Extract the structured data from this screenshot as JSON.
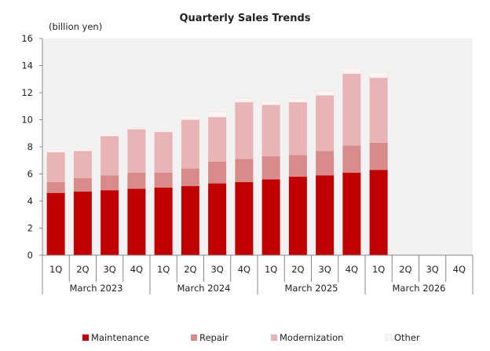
{
  "chart_data": {
    "type": "bar",
    "stacked": true,
    "title": "Quarterly Sales Trends",
    "ylabel": "(billion yen)",
    "xlabel": "",
    "ylim": [
      0,
      16
    ],
    "yticks": [
      0,
      2,
      4,
      6,
      8,
      10,
      12,
      14,
      16
    ],
    "grid": false,
    "legend_position": "bottom",
    "plot_background": "#f2f2f2",
    "categories": [
      "1Q",
      "2Q",
      "3Q",
      "4Q",
      "1Q",
      "2Q",
      "3Q",
      "4Q",
      "1Q",
      "2Q",
      "3Q",
      "4Q",
      "1Q",
      "2Q",
      "3Q",
      "4Q"
    ],
    "groups": [
      {
        "label": "March 2023",
        "size": 4
      },
      {
        "label": "March 2024",
        "size": 4
      },
      {
        "label": "March 2025",
        "size": 4
      },
      {
        "label": "March 2026",
        "size": 4
      }
    ],
    "series": [
      {
        "name": "Maintenance",
        "color": "#c00000",
        "values": [
          4.6,
          4.7,
          4.8,
          4.9,
          5.0,
          5.1,
          5.3,
          5.4,
          5.6,
          5.8,
          5.9,
          6.1,
          6.3,
          null,
          null,
          null
        ]
      },
      {
        "name": "Repair",
        "color": "#d98b8b",
        "values": [
          0.8,
          1.0,
          1.1,
          1.2,
          1.1,
          1.3,
          1.6,
          1.7,
          1.7,
          1.6,
          1.8,
          2.0,
          2.0,
          null,
          null,
          null
        ]
      },
      {
        "name": "Modernization",
        "color": "#e8b4b5",
        "values": [
          2.2,
          2.0,
          2.9,
          3.2,
          3.0,
          3.6,
          3.3,
          4.2,
          3.8,
          3.9,
          4.1,
          5.3,
          4.8,
          null,
          null,
          null
        ]
      },
      {
        "name": "Other",
        "color": "#fdf4f4",
        "values": [
          0.2,
          0.15,
          0.15,
          0.1,
          0.1,
          0.3,
          0.4,
          0.3,
          0.3,
          0.3,
          0.3,
          0.4,
          0.4,
          null,
          null,
          null
        ]
      }
    ]
  }
}
